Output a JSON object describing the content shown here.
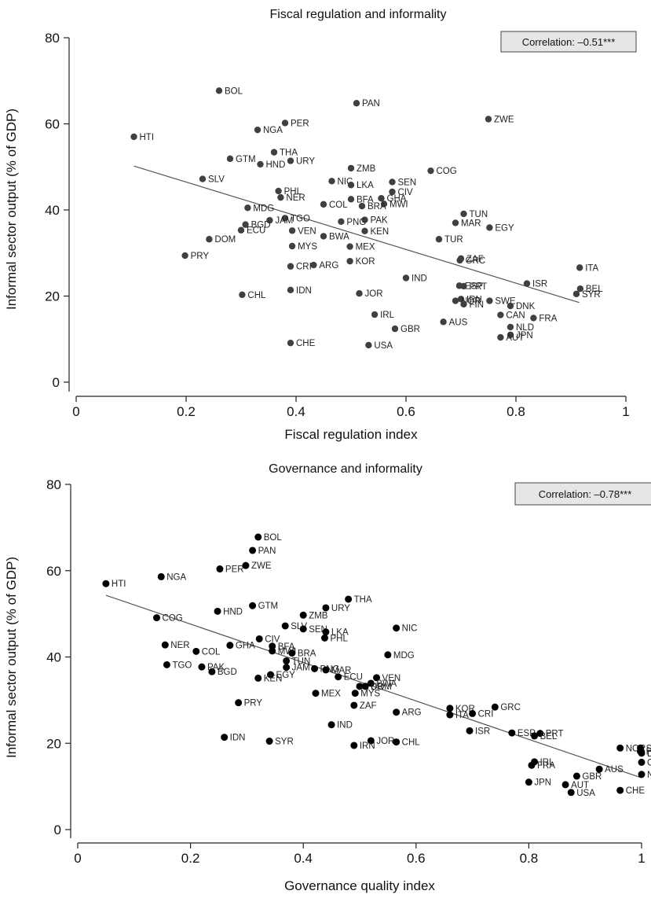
{
  "chart_data": [
    {
      "type": "scatter",
      "title": "Fiscal regulation and informality",
      "xlabel": "Fiscal regulation index",
      "ylabel": "Informal sector output (% of GDP)",
      "xlim": [
        0,
        1
      ],
      "ylim": [
        0,
        80
      ],
      "xticks": [
        "0",
        "0.2",
        "0.4",
        "0.6",
        "0.8",
        "1"
      ],
      "yticks": [
        "0",
        "20",
        "40",
        "60",
        "80"
      ],
      "annotation": "Correlation: –0.51***",
      "fit_line": {
        "x": [
          0.105,
          0.915
        ],
        "y": [
          50.2,
          18.5
        ]
      },
      "marker_color": "#404040",
      "points": [
        {
          "label": "BOL",
          "x": 0.26,
          "y": 67.7
        },
        {
          "label": "PAN",
          "x": 0.51,
          "y": 64.8
        },
        {
          "label": "ZWE",
          "x": 0.75,
          "y": 61.1
        },
        {
          "label": "PER",
          "x": 0.38,
          "y": 60.2
        },
        {
          "label": "NGA",
          "x": 0.33,
          "y": 58.6
        },
        {
          "label": "HTI",
          "x": 0.105,
          "y": 57.0
        },
        {
          "label": "THA",
          "x": 0.36,
          "y": 53.4
        },
        {
          "label": "GTM",
          "x": 0.28,
          "y": 51.9
        },
        {
          "label": "URY",
          "x": 0.39,
          "y": 51.4
        },
        {
          "label": "HND",
          "x": 0.335,
          "y": 50.6
        },
        {
          "label": "ZMB",
          "x": 0.5,
          "y": 49.7
        },
        {
          "label": "COG",
          "x": 0.645,
          "y": 49.1
        },
        {
          "label": "SLV",
          "x": 0.23,
          "y": 47.2
        },
        {
          "label": "NIC",
          "x": 0.465,
          "y": 46.7
        },
        {
          "label": "SEN",
          "x": 0.575,
          "y": 46.5
        },
        {
          "label": "LKA",
          "x": 0.5,
          "y": 45.8
        },
        {
          "label": "PHL",
          "x": 0.368,
          "y": 44.4
        },
        {
          "label": "CIV",
          "x": 0.575,
          "y": 44.2
        },
        {
          "label": "NER",
          "x": 0.372,
          "y": 42.9
        },
        {
          "label": "GHA",
          "x": 0.555,
          "y": 42.7
        },
        {
          "label": "BFA",
          "x": 0.5,
          "y": 42.5
        },
        {
          "label": "MWI",
          "x": 0.56,
          "y": 41.4
        },
        {
          "label": "BRA",
          "x": 0.52,
          "y": 40.9
        },
        {
          "label": "COL",
          "x": 0.45,
          "y": 41.3
        },
        {
          "label": "MDG",
          "x": 0.312,
          "y": 40.5
        },
        {
          "label": "TUN",
          "x": 0.705,
          "y": 39.1
        },
        {
          "label": "TGO",
          "x": 0.38,
          "y": 38.1
        },
        {
          "label": "JAM",
          "x": 0.352,
          "y": 37.6
        },
        {
          "label": "PAK",
          "x": 0.525,
          "y": 37.7
        },
        {
          "label": "PNG",
          "x": 0.482,
          "y": 37.3
        },
        {
          "label": "MAR",
          "x": 0.69,
          "y": 37.0
        },
        {
          "label": "BGD",
          "x": 0.308,
          "y": 36.6
        },
        {
          "label": "EGY",
          "x": 0.752,
          "y": 35.9
        },
        {
          "label": "ECU",
          "x": 0.3,
          "y": 35.3
        },
        {
          "label": "VEN",
          "x": 0.393,
          "y": 35.2
        },
        {
          "label": "KEN",
          "x": 0.525,
          "y": 35.1
        },
        {
          "label": "BWA",
          "x": 0.45,
          "y": 33.9
        },
        {
          "label": "DOM",
          "x": 0.242,
          "y": 33.2
        },
        {
          "label": "TUR",
          "x": 0.66,
          "y": 33.2
        },
        {
          "label": "MYS",
          "x": 0.393,
          "y": 31.6
        },
        {
          "label": "MEX",
          "x": 0.498,
          "y": 31.5
        },
        {
          "label": "PRY",
          "x": 0.198,
          "y": 29.4
        },
        {
          "label": "ZAF",
          "x": 0.7,
          "y": 28.7
        },
        {
          "label": "GRC",
          "x": 0.698,
          "y": 28.3
        },
        {
          "label": "KOR",
          "x": 0.498,
          "y": 28.1
        },
        {
          "label": "ARG",
          "x": 0.432,
          "y": 27.2
        },
        {
          "label": "CRI",
          "x": 0.39,
          "y": 26.9
        },
        {
          "label": "ITA",
          "x": 0.916,
          "y": 26.6
        },
        {
          "label": "IND",
          "x": 0.6,
          "y": 24.2
        },
        {
          "label": "ISR",
          "x": 0.82,
          "y": 22.9
        },
        {
          "label": "ESP",
          "x": 0.697,
          "y": 22.4
        },
        {
          "label": "PRT",
          "x": 0.705,
          "y": 22.3
        },
        {
          "label": "BEL",
          "x": 0.917,
          "y": 21.7
        },
        {
          "label": "IDN",
          "x": 0.39,
          "y": 21.4
        },
        {
          "label": "SYR",
          "x": 0.91,
          "y": 20.5
        },
        {
          "label": "JOR",
          "x": 0.515,
          "y": 20.6
        },
        {
          "label": "CHL",
          "x": 0.302,
          "y": 20.3
        },
        {
          "label": "IRN",
          "x": 0.7,
          "y": 19.3
        },
        {
          "label": "NOR",
          "x": 0.69,
          "y": 18.9
        },
        {
          "label": "SWE",
          "x": 0.752,
          "y": 18.9
        },
        {
          "label": "FIN",
          "x": 0.705,
          "y": 18.1
        },
        {
          "label": "DNK",
          "x": 0.79,
          "y": 17.7
        },
        {
          "label": "IRL",
          "x": 0.543,
          "y": 15.7
        },
        {
          "label": "CAN",
          "x": 0.772,
          "y": 15.6
        },
        {
          "label": "FRA",
          "x": 0.832,
          "y": 14.9
        },
        {
          "label": "AUS",
          "x": 0.668,
          "y": 14.0
        },
        {
          "label": "NLD",
          "x": 0.79,
          "y": 12.8
        },
        {
          "label": "GBR",
          "x": 0.58,
          "y": 12.4
        },
        {
          "label": "JPN",
          "x": 0.79,
          "y": 11.0
        },
        {
          "label": "AUT",
          "x": 0.772,
          "y": 10.4
        },
        {
          "label": "CHE",
          "x": 0.39,
          "y": 9.1
        },
        {
          "label": "USA",
          "x": 0.532,
          "y": 8.6
        }
      ]
    },
    {
      "type": "scatter",
      "title": "Governance and informality",
      "xlabel": "Governance quality index",
      "ylabel": "Informal sector output (% of GDP)",
      "xlim": [
        0,
        1
      ],
      "ylim": [
        0,
        80
      ],
      "xticks": [
        "0",
        "0.2",
        "0.4",
        "0.6",
        "0.8",
        "1"
      ],
      "yticks": [
        "0",
        "20",
        "40",
        "60",
        "80"
      ],
      "annotation": "Correlation: –0.78***",
      "fit_line": {
        "x": [
          0.05,
          1.0
        ],
        "y": [
          54.3,
          12.0
        ]
      },
      "marker_color": "#000000",
      "points": [
        {
          "label": "BOL",
          "x": 0.32,
          "y": 67.8
        },
        {
          "label": "PAN",
          "x": 0.31,
          "y": 64.7
        },
        {
          "label": "ZWE",
          "x": 0.298,
          "y": 61.2
        },
        {
          "label": "PER",
          "x": 0.252,
          "y": 60.4
        },
        {
          "label": "NGA",
          "x": 0.148,
          "y": 58.6
        },
        {
          "label": "HTI",
          "x": 0.05,
          "y": 57.0
        },
        {
          "label": "THA",
          "x": 0.48,
          "y": 53.4
        },
        {
          "label": "GTM",
          "x": 0.31,
          "y": 51.9
        },
        {
          "label": "URY",
          "x": 0.44,
          "y": 51.4
        },
        {
          "label": "HND",
          "x": 0.248,
          "y": 50.6
        },
        {
          "label": "ZMB",
          "x": 0.4,
          "y": 49.7
        },
        {
          "label": "COG",
          "x": 0.14,
          "y": 49.1
        },
        {
          "label": "SLV",
          "x": 0.368,
          "y": 47.2
        },
        {
          "label": "NIC",
          "x": 0.565,
          "y": 46.7
        },
        {
          "label": "SEN",
          "x": 0.4,
          "y": 46.5
        },
        {
          "label": "LKA",
          "x": 0.44,
          "y": 45.8
        },
        {
          "label": "PHL",
          "x": 0.438,
          "y": 44.4
        },
        {
          "label": "CIV",
          "x": 0.322,
          "y": 44.2
        },
        {
          "label": "NER",
          "x": 0.155,
          "y": 42.8
        },
        {
          "label": "GHA",
          "x": 0.27,
          "y": 42.7
        },
        {
          "label": "BFA",
          "x": 0.345,
          "y": 42.5
        },
        {
          "label": "MWI",
          "x": 0.345,
          "y": 41.4
        },
        {
          "label": "COL",
          "x": 0.21,
          "y": 41.3
        },
        {
          "label": "BRA",
          "x": 0.38,
          "y": 40.9
        },
        {
          "label": "MDG",
          "x": 0.55,
          "y": 40.5
        },
        {
          "label": "TUN",
          "x": 0.37,
          "y": 39.1
        },
        {
          "label": "TGO",
          "x": 0.158,
          "y": 38.2
        },
        {
          "label": "JAM",
          "x": 0.37,
          "y": 37.6
        },
        {
          "label": "PAK",
          "x": 0.22,
          "y": 37.7
        },
        {
          "label": "PNG",
          "x": 0.42,
          "y": 37.3
        },
        {
          "label": "MAR",
          "x": 0.44,
          "y": 37.0
        },
        {
          "label": "BGD",
          "x": 0.238,
          "y": 36.6
        },
        {
          "label": "EGY",
          "x": 0.342,
          "y": 35.9
        },
        {
          "label": "ECU",
          "x": 0.462,
          "y": 35.4
        },
        {
          "label": "VEN",
          "x": 0.53,
          "y": 35.2
        },
        {
          "label": "KEN",
          "x": 0.32,
          "y": 35.1
        },
        {
          "label": "BWA",
          "x": 0.52,
          "y": 33.9
        },
        {
          "label": "TUR",
          "x": 0.5,
          "y": 33.2
        },
        {
          "label": "DOM",
          "x": 0.51,
          "y": 33.2
        },
        {
          "label": "MEX",
          "x": 0.422,
          "y": 31.6
        },
        {
          "label": "MYS",
          "x": 0.492,
          "y": 31.6
        },
        {
          "label": "PRY",
          "x": 0.285,
          "y": 29.4
        },
        {
          "label": "ZAF",
          "x": 0.49,
          "y": 28.8
        },
        {
          "label": "GRC",
          "x": 0.74,
          "y": 28.4
        },
        {
          "label": "KOR",
          "x": 0.66,
          "y": 28.1
        },
        {
          "label": "ARG",
          "x": 0.565,
          "y": 27.2
        },
        {
          "label": "CRI",
          "x": 0.7,
          "y": 26.9
        },
        {
          "label": "ITA",
          "x": 0.66,
          "y": 26.6
        },
        {
          "label": "IND",
          "x": 0.45,
          "y": 24.3
        },
        {
          "label": "ISR",
          "x": 0.695,
          "y": 22.9
        },
        {
          "label": "ESP",
          "x": 0.77,
          "y": 22.4
        },
        {
          "label": "PRT",
          "x": 0.82,
          "y": 22.3
        },
        {
          "label": "BEL",
          "x": 0.81,
          "y": 21.7
        },
        {
          "label": "IDN",
          "x": 0.26,
          "y": 21.4
        },
        {
          "label": "SYR",
          "x": 0.34,
          "y": 20.5
        },
        {
          "label": "JOR",
          "x": 0.52,
          "y": 20.6
        },
        {
          "label": "CHL",
          "x": 0.565,
          "y": 20.3
        },
        {
          "label": "IRN",
          "x": 0.49,
          "y": 19.5
        },
        {
          "label": "NOR",
          "x": 0.962,
          "y": 18.9
        },
        {
          "label": "SWE",
          "x": 0.998,
          "y": 18.9
        },
        {
          "label": "FIN",
          "x": 0.998,
          "y": 18.1
        },
        {
          "label": "DNK",
          "x": 1.0,
          "y": 17.7
        },
        {
          "label": "IRL",
          "x": 0.81,
          "y": 15.7
        },
        {
          "label": "CAN",
          "x": 1.0,
          "y": 15.6
        },
        {
          "label": "FRA",
          "x": 0.805,
          "y": 14.9
        },
        {
          "label": "AUS",
          "x": 0.925,
          "y": 14.0
        },
        {
          "label": "NLD",
          "x": 1.0,
          "y": 12.8
        },
        {
          "label": "GBR",
          "x": 0.885,
          "y": 12.4
        },
        {
          "label": "JPN",
          "x": 0.8,
          "y": 11.0
        },
        {
          "label": "AUT",
          "x": 0.865,
          "y": 10.4
        },
        {
          "label": "CHE",
          "x": 0.962,
          "y": 9.1
        },
        {
          "label": "USA",
          "x": 0.875,
          "y": 8.6
        }
      ]
    }
  ]
}
